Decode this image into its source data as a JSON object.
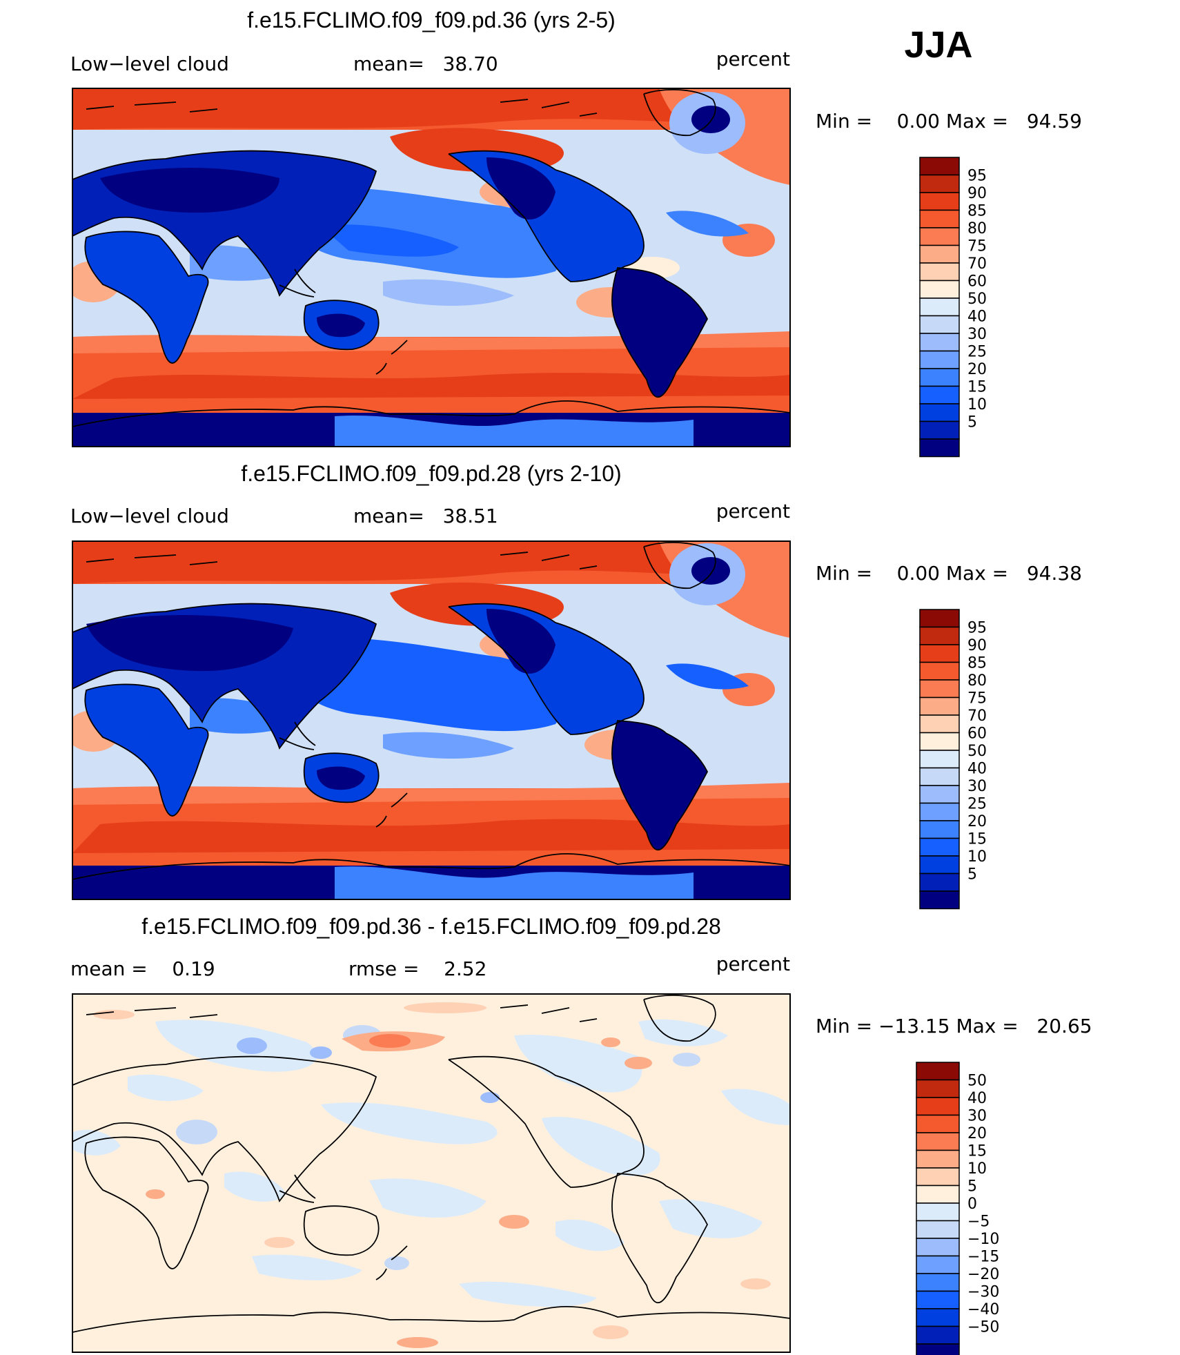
{
  "chart_data": {
    "type": "heatmap",
    "season": "JJA",
    "colors": {
      "abs": [
        "#000080",
        "#0020b8",
        "#0040e0",
        "#1560ff",
        "#3c82ff",
        "#6ea0ff",
        "#9cbcfc",
        "#c6daf8",
        "#dcebfa",
        "#fff0de",
        "#ffd1b4",
        "#fdac88",
        "#fb7c52",
        "#f45a2d",
        "#e63e19",
        "#c22a10",
        "#8c0a05"
      ],
      "diff": [
        "#000080",
        "#0020b8",
        "#0040e0",
        "#1560ff",
        "#3c82ff",
        "#6ea0ff",
        "#9cbcfc",
        "#c6daf8",
        "#dcebfa",
        "#fff0de",
        "#ffd1b4",
        "#fdac88",
        "#fb7c52",
        "#f45a2d",
        "#e63e19",
        "#c22a10",
        "#8c0a05"
      ]
    },
    "panels": [
      {
        "title": "f.e15.FCLIMO.f09_f09.pd.36 (yrs 2-5)",
        "left": "Low−level cloud",
        "middle": "mean=   38.70",
        "units": "percent",
        "minmax": "Min =    0.00 Max =   94.59",
        "kind": "abs",
        "contour_levels": [
          "95",
          "90",
          "85",
          "80",
          "75",
          "70",
          "60",
          "50",
          "40",
          "30",
          "25",
          "20",
          "15",
          "10",
          "5"
        ]
      },
      {
        "title": "f.e15.FCLIMO.f09_f09.pd.28 (yrs 2-10)",
        "left": "Low−level cloud",
        "middle": "mean=   38.51",
        "units": "percent",
        "minmax": "Min =    0.00 Max =   94.38",
        "kind": "abs",
        "contour_levels": [
          "95",
          "90",
          "85",
          "80",
          "75",
          "70",
          "60",
          "50",
          "40",
          "30",
          "25",
          "20",
          "15",
          "10",
          "5"
        ]
      },
      {
        "title": "f.e15.FCLIMO.f09_f09.pd.36 - f.e15.FCLIMO.f09_f09.pd.28",
        "left": "mean =    0.19",
        "middle": "rmse =    2.52",
        "units": "percent",
        "minmax": "Min = −13.15 Max =   20.65",
        "kind": "diff",
        "contour_levels": [
          "50",
          "40",
          "30",
          "20",
          "15",
          "10",
          "5",
          "0",
          "−5",
          "−10",
          "−15",
          "−20",
          "−30",
          "−40",
          "−50"
        ]
      }
    ]
  }
}
